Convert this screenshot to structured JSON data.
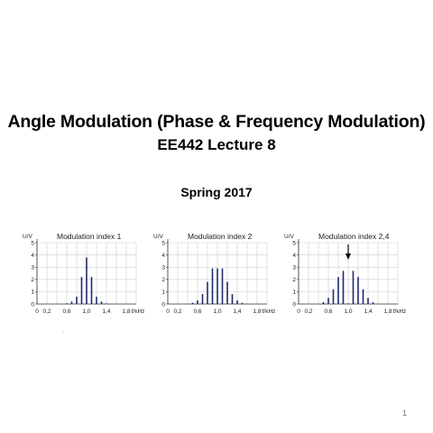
{
  "slide": {
    "title": "Angle Modulation (Phase & Frequency Modulation)",
    "subtitle": "EE442 Lecture 8",
    "date": "Spring 2017",
    "page_number": "1",
    "stray_mark": "'"
  },
  "chart_data": [
    {
      "type": "bar",
      "title": "Modulation index 1",
      "ylabel": "U/V",
      "xlabel": "f/kHz",
      "ylim": [
        0,
        5
      ],
      "xlim": [
        0,
        2.0
      ],
      "y_ticks": [
        "0",
        "1",
        "2",
        "3",
        "4",
        "5"
      ],
      "x_tick_labels": [
        {
          "v": 0,
          "t": "0"
        },
        {
          "v": 0.2,
          "t": "0,2"
        },
        {
          "v": 0.6,
          "t": "0,6"
        },
        {
          "v": 1.0,
          "t": "1,0"
        },
        {
          "v": 1.4,
          "t": "1,4"
        },
        {
          "v": 1.8,
          "t": "1,8"
        }
      ],
      "grid": true,
      "bar_color": "#1f2a6e",
      "x": [
        0.6,
        0.7,
        0.8,
        0.9,
        1.0,
        1.1,
        1.2,
        1.3,
        1.4
      ],
      "values": [
        0.05,
        0.2,
        0.6,
        2.2,
        3.8,
        2.2,
        0.6,
        0.2,
        0.05
      ]
    },
    {
      "type": "bar",
      "title": "Modulation index 2",
      "ylabel": "U/V",
      "xlabel": "f/kHz",
      "ylim": [
        0,
        5
      ],
      "xlim": [
        0,
        2.0
      ],
      "y_ticks": [
        "0",
        "1",
        "2",
        "3",
        "4",
        "5"
      ],
      "x_tick_labels": [
        {
          "v": 0,
          "t": "0"
        },
        {
          "v": 0.2,
          "t": "0,2"
        },
        {
          "v": 0.6,
          "t": "0,6"
        },
        {
          "v": 1.0,
          "t": "1,0"
        },
        {
          "v": 1.4,
          "t": "1,4"
        },
        {
          "v": 1.8,
          "t": "1,8"
        }
      ],
      "grid": true,
      "bar_color": "#1f2a6e",
      "x": [
        0.5,
        0.6,
        0.7,
        0.8,
        0.9,
        1.0,
        1.1,
        1.2,
        1.3,
        1.4,
        1.5
      ],
      "values": [
        0.1,
        0.3,
        0.8,
        1.8,
        2.9,
        2.9,
        2.9,
        1.8,
        0.8,
        0.3,
        0.1
      ]
    },
    {
      "type": "bar",
      "title": "Modulation index 2,4",
      "ylabel": "U/V",
      "xlabel": "f/kHz",
      "ylim": [
        0,
        5
      ],
      "xlim": [
        0,
        2.0
      ],
      "y_ticks": [
        "0",
        "1",
        "2",
        "3",
        "4",
        "5"
      ],
      "x_tick_labels": [
        {
          "v": 0,
          "t": "0"
        },
        {
          "v": 0.2,
          "t": "0,2"
        },
        {
          "v": 0.6,
          "t": "0,6"
        },
        {
          "v": 1.0,
          "t": "1,0"
        },
        {
          "v": 1.4,
          "t": "1,4"
        },
        {
          "v": 1.8,
          "t": "1,8"
        }
      ],
      "grid": true,
      "bar_color": "#1f2a6e",
      "arrow_at": 1.0,
      "x": [
        0.5,
        0.6,
        0.7,
        0.8,
        0.9,
        1.0,
        1.1,
        1.2,
        1.3,
        1.4,
        1.5
      ],
      "values": [
        0.15,
        0.5,
        1.2,
        2.2,
        2.7,
        0.05,
        2.7,
        2.2,
        1.2,
        0.5,
        0.15
      ]
    }
  ]
}
